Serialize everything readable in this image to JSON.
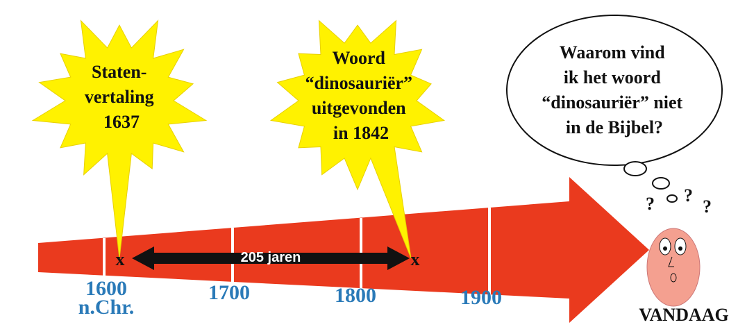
{
  "bursts": [
    {
      "lines": [
        "Staten-",
        "vertaling",
        "1637"
      ]
    },
    {
      "lines": [
        "Woord",
        "“dinosauriër”",
        "uitgevonden",
        "in 1842"
      ]
    }
  ],
  "thought": {
    "lines": [
      "Waarom vind",
      "ik het woord",
      "“dinosauriër” niet",
      "in de Bijbel?"
    ]
  },
  "span": {
    "label": "205 jaren"
  },
  "markers": [
    "x",
    "x"
  ],
  "question_marks": [
    "?",
    "?",
    "?"
  ],
  "timeline": {
    "labels": [
      "1600",
      "1700",
      "1800",
      "1900"
    ],
    "era": "n.Chr.",
    "end": "VANDAAG"
  }
}
